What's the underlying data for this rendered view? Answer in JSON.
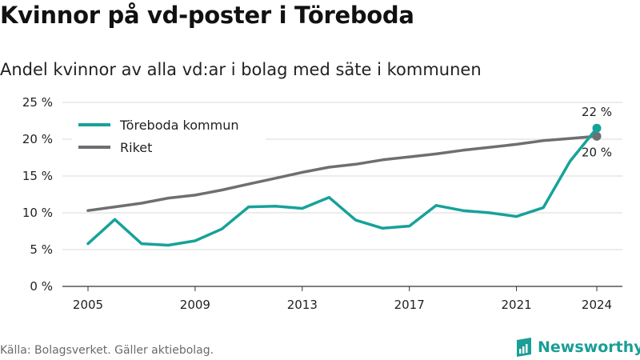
{
  "header": {
    "title": "Kvinnor på vd-poster i Töreboda",
    "subtitle": "Andel kvinnor av alla vd:ar i bolag med säte i kommunen"
  },
  "footer": {
    "source": "Källa: Bolagsverket. Gäller aktiebolag.",
    "brand": "Newsworthy"
  },
  "colors": {
    "teal": "#17a299",
    "gray": "#6e6e73",
    "grid": "#d9d9d9",
    "axis": "#333333"
  },
  "chart_data": {
    "type": "line",
    "x": [
      2005,
      2006,
      2007,
      2008,
      2009,
      2010,
      2011,
      2012,
      2013,
      2014,
      2015,
      2016,
      2017,
      2018,
      2019,
      2020,
      2021,
      2022,
      2023,
      2024
    ],
    "series": [
      {
        "name": "Töreboda kommun",
        "color": "#17a299",
        "values": [
          5.8,
          9.1,
          5.8,
          5.6,
          6.2,
          7.8,
          10.8,
          10.9,
          10.6,
          12.1,
          9.0,
          7.9,
          8.2,
          11.0,
          10.3,
          10.0,
          9.5,
          10.7,
          17.0,
          21.5
        ]
      },
      {
        "name": "Riket",
        "color": "#6e6e73",
        "values": [
          10.3,
          10.8,
          11.3,
          12.0,
          12.4,
          13.1,
          13.9,
          14.7,
          15.5,
          16.2,
          16.6,
          17.2,
          17.6,
          18.0,
          18.5,
          18.9,
          19.3,
          19.8,
          20.1,
          20.4
        ]
      }
    ],
    "end_labels": [
      "22 %",
      "20 %"
    ],
    "xticks": [
      2005,
      2009,
      2013,
      2017,
      2021,
      2024
    ],
    "yticks": [
      0,
      5,
      10,
      15,
      20,
      25
    ],
    "ytick_labels": [
      "0 %",
      "5 %",
      "10 %",
      "15 %",
      "20 %",
      "25 %"
    ],
    "ylim": [
      0,
      25
    ],
    "xlim": [
      2005,
      2024
    ],
    "grid": true,
    "legend_position": "top-left"
  }
}
